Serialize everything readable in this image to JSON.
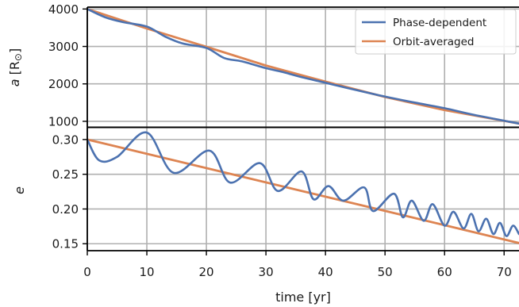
{
  "chart_data": [
    {
      "type": "line",
      "ylabel": "a [R⊙]",
      "ylim": [
        850,
        4050
      ],
      "xlim": [
        0,
        72.5
      ],
      "grid": true,
      "yticks": [
        1000,
        2000,
        3000,
        4000
      ],
      "ytick_labels": [
        "1000",
        "2000",
        "3000",
        "4000"
      ],
      "legend": {
        "placement": "top-right"
      },
      "series": [
        {
          "name": "Phase-dependent",
          "color": "#4c72b0",
          "x": [
            0,
            3,
            6,
            10,
            13,
            16,
            20,
            23,
            26,
            30,
            33,
            36,
            40,
            45,
            50,
            55,
            60,
            65,
            72.5
          ],
          "y": [
            4000,
            3780,
            3650,
            3530,
            3270,
            3080,
            2960,
            2690,
            2600,
            2420,
            2310,
            2180,
            2030,
            1840,
            1660,
            1500,
            1350,
            1170,
            940
          ]
        },
        {
          "name": "Orbit-averaged",
          "color": "#dd8452",
          "x": [
            0,
            10,
            20,
            30,
            40,
            50,
            60,
            72.5
          ],
          "y": [
            4000,
            3480,
            2990,
            2490,
            2060,
            1650,
            1300,
            940
          ]
        }
      ]
    },
    {
      "type": "line",
      "ylabel": "e",
      "xlabel": "time [yr]",
      "xlim": [
        0,
        72.5
      ],
      "ylim": [
        0.14,
        0.317
      ],
      "grid": true,
      "xticks": [
        0,
        10,
        20,
        30,
        40,
        50,
        60,
        70
      ],
      "xtick_labels": [
        "0",
        "10",
        "20",
        "30",
        "40",
        "50",
        "60",
        "70"
      ],
      "yticks": [
        0.15,
        0.2,
        0.25,
        0.3
      ],
      "ytick_labels": [
        "0.15",
        "0.20",
        "0.25",
        "0.30"
      ],
      "series": [
        {
          "name": "Phase-dependent",
          "color": "#4c72b0",
          "x": [
            0,
            2,
            5,
            10,
            14.5,
            20.5,
            24,
            29,
            32,
            36,
            38,
            40.5,
            43,
            46.5,
            48,
            51.5,
            53,
            54.5,
            56.5,
            58,
            60,
            61.5,
            63.2,
            64.5,
            65.7,
            67,
            68.2,
            69.3,
            70.4,
            71.5,
            72.5
          ],
          "y": [
            0.3,
            0.27,
            0.275,
            0.31,
            0.252,
            0.284,
            0.238,
            0.266,
            0.226,
            0.254,
            0.214,
            0.233,
            0.212,
            0.231,
            0.197,
            0.222,
            0.188,
            0.212,
            0.183,
            0.207,
            0.176,
            0.196,
            0.172,
            0.193,
            0.168,
            0.186,
            0.164,
            0.18,
            0.161,
            0.176,
            0.164
          ]
        },
        {
          "name": "Orbit-averaged",
          "color": "#dd8452",
          "x": [
            0,
            72.5
          ],
          "y": [
            0.3,
            0.151
          ]
        }
      ]
    }
  ]
}
